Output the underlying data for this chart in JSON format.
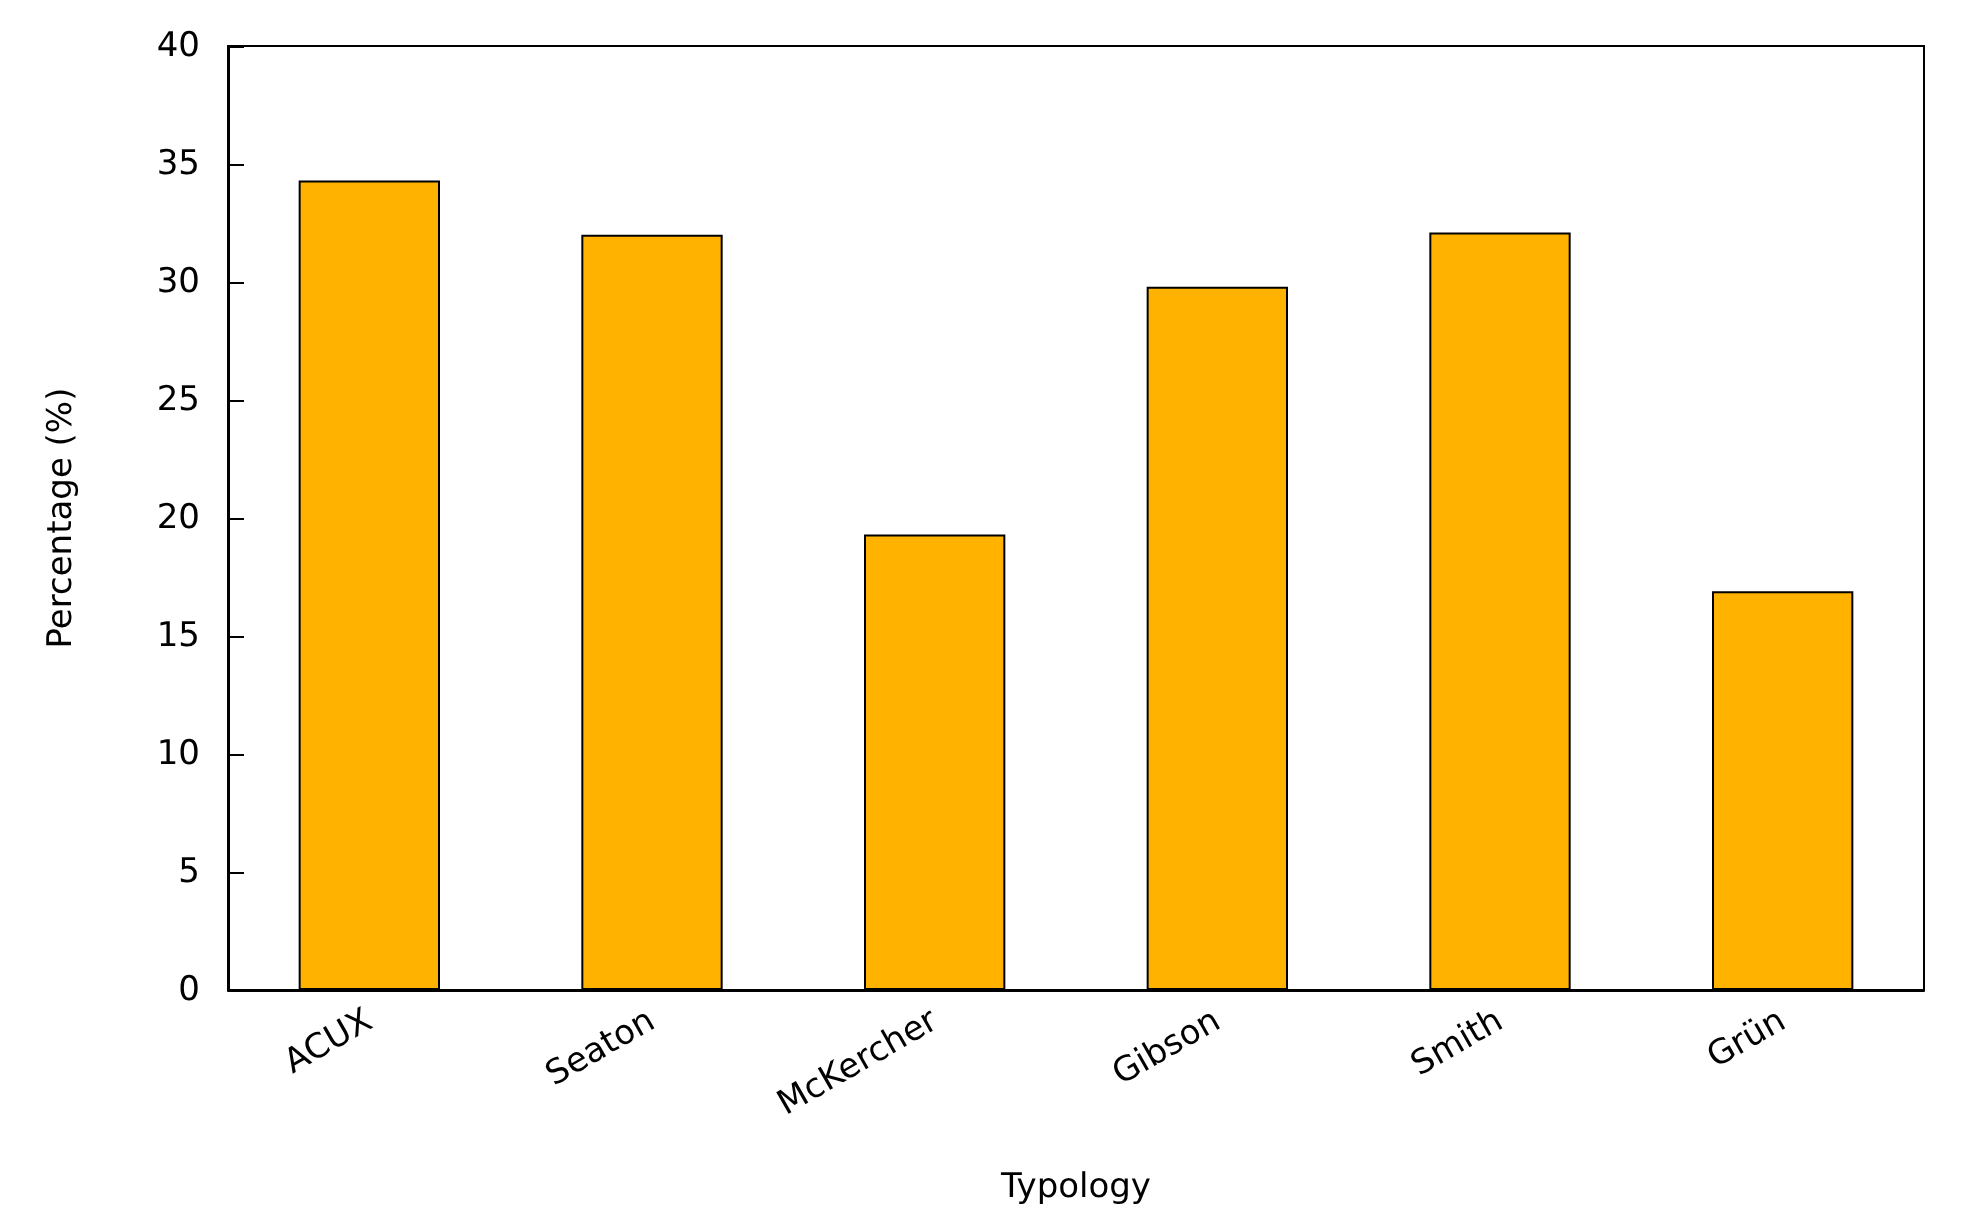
{
  "chart_data": {
    "type": "bar",
    "xlabel": "Typology",
    "ylabel": "Percentage (%)",
    "categories": [
      "ACUX",
      "Seaton",
      "McKercher",
      "Gibson",
      "Smith",
      "Grün"
    ],
    "values": [
      34.3,
      32.0,
      19.3,
      29.8,
      32.1,
      16.9
    ],
    "color": "#ffb300",
    "ylim": [
      0,
      40
    ],
    "yticks": [
      0,
      5,
      10,
      15,
      20,
      25,
      30,
      35,
      40
    ],
    "grid": false
  }
}
